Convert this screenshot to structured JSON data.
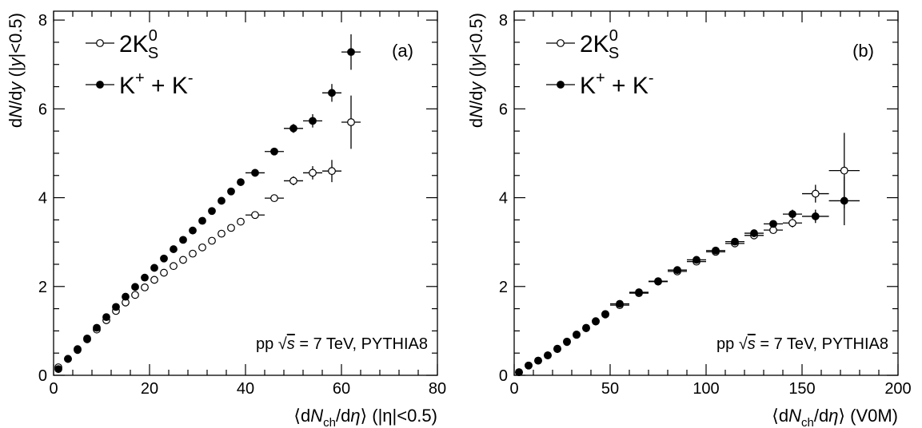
{
  "chart_data": [
    {
      "type": "scatter",
      "panel_label": "(a)",
      "annotation": {
        "pre": "pp  ",
        "sqrt": "√",
        "s": "s",
        "post": " = 7 TeV, PYTHIA8"
      },
      "xlabel": {
        "bra": "⟨",
        "dN": "dN",
        "sub": "ch",
        "slash": "/d",
        "eta": "η",
        "ket": "⟩",
        "suffix": " (|η|<0.5)"
      },
      "ylabel": {
        "dN": "dN",
        "dy": "/dy",
        "open": " (|",
        "y": "y",
        "close": "|<0.5)"
      },
      "xlim": [
        0,
        80
      ],
      "ylim": [
        0,
        8.2
      ],
      "xticks": [
        "0",
        "20",
        "40",
        "60",
        "80"
      ],
      "yticks": [
        "0",
        "2",
        "4",
        "6",
        "8"
      ],
      "grid": false,
      "legend_position": "top-left",
      "series": [
        {
          "name": {
            "main": "2K",
            "sup": "0",
            "sub": "S"
          },
          "marker": "open-circle",
          "points": [
            {
              "x": 1,
              "y": 0.18,
              "xerr": 0,
              "yerr": 0.03
            },
            {
              "x": 3,
              "y": 0.37,
              "xerr": 0,
              "yerr": 0.03
            },
            {
              "x": 5,
              "y": 0.57,
              "xerr": 0,
              "yerr": 0.03
            },
            {
              "x": 7,
              "y": 0.81,
              "xerr": 0,
              "yerr": 0.03
            },
            {
              "x": 9,
              "y": 1.03,
              "xerr": 0,
              "yerr": 0.03
            },
            {
              "x": 11,
              "y": 1.24,
              "xerr": 0,
              "yerr": 0.03
            },
            {
              "x": 13,
              "y": 1.45,
              "xerr": 0,
              "yerr": 0.03
            },
            {
              "x": 15,
              "y": 1.64,
              "xerr": 0,
              "yerr": 0.03
            },
            {
              "x": 17,
              "y": 1.81,
              "xerr": 0,
              "yerr": 0.03
            },
            {
              "x": 19,
              "y": 1.98,
              "xerr": 0,
              "yerr": 0.03
            },
            {
              "x": 21,
              "y": 2.15,
              "xerr": 0,
              "yerr": 0.03
            },
            {
              "x": 23,
              "y": 2.31,
              "xerr": 0,
              "yerr": 0.03
            },
            {
              "x": 25,
              "y": 2.46,
              "xerr": 0,
              "yerr": 0.03
            },
            {
              "x": 27,
              "y": 2.6,
              "xerr": 0,
              "yerr": 0.03
            },
            {
              "x": 29,
              "y": 2.74,
              "xerr": 0,
              "yerr": 0.03
            },
            {
              "x": 31,
              "y": 2.88,
              "xerr": 0,
              "yerr": 0.03
            },
            {
              "x": 33,
              "y": 3.03,
              "xerr": 0,
              "yerr": 0.03
            },
            {
              "x": 35,
              "y": 3.19,
              "xerr": 0,
              "yerr": 0.03
            },
            {
              "x": 37,
              "y": 3.32,
              "xerr": 0,
              "yerr": 0.03
            },
            {
              "x": 39,
              "y": 3.46,
              "xerr": 0,
              "yerr": 0.03
            },
            {
              "x": 42,
              "y": 3.61,
              "xerr": 2,
              "yerr": 0.05
            },
            {
              "x": 46,
              "y": 3.99,
              "xerr": 2,
              "yerr": 0.07
            },
            {
              "x": 50,
              "y": 4.38,
              "xerr": 2,
              "yerr": 0.1
            },
            {
              "x": 54,
              "y": 4.56,
              "xerr": 2,
              "yerr": 0.15
            },
            {
              "x": 58,
              "y": 4.6,
              "xerr": 2,
              "yerr": 0.25
            },
            {
              "x": 62,
              "y": 5.7,
              "xerr": 2,
              "yerr": 0.6
            }
          ]
        },
        {
          "name": {
            "main": "K",
            "sup1": "+",
            "mid": " + K",
            "sup2": "-"
          },
          "marker": "filled-circle",
          "points": [
            {
              "x": 1,
              "y": 0.14,
              "xerr": 0,
              "yerr": 0.03
            },
            {
              "x": 3,
              "y": 0.37,
              "xerr": 0,
              "yerr": 0.03
            },
            {
              "x": 5,
              "y": 0.59,
              "xerr": 0,
              "yerr": 0.03
            },
            {
              "x": 7,
              "y": 0.83,
              "xerr": 0,
              "yerr": 0.03
            },
            {
              "x": 9,
              "y": 1.07,
              "xerr": 0,
              "yerr": 0.03
            },
            {
              "x": 11,
              "y": 1.31,
              "xerr": 0,
              "yerr": 0.03
            },
            {
              "x": 13,
              "y": 1.54,
              "xerr": 0,
              "yerr": 0.03
            },
            {
              "x": 15,
              "y": 1.77,
              "xerr": 0,
              "yerr": 0.03
            },
            {
              "x": 17,
              "y": 1.99,
              "xerr": 0,
              "yerr": 0.03
            },
            {
              "x": 19,
              "y": 2.2,
              "xerr": 0,
              "yerr": 0.03
            },
            {
              "x": 21,
              "y": 2.42,
              "xerr": 0,
              "yerr": 0.03
            },
            {
              "x": 23,
              "y": 2.63,
              "xerr": 0,
              "yerr": 0.03
            },
            {
              "x": 25,
              "y": 2.84,
              "xerr": 0,
              "yerr": 0.03
            },
            {
              "x": 27,
              "y": 3.05,
              "xerr": 0,
              "yerr": 0.03
            },
            {
              "x": 29,
              "y": 3.26,
              "xerr": 0,
              "yerr": 0.03
            },
            {
              "x": 31,
              "y": 3.48,
              "xerr": 0,
              "yerr": 0.03
            },
            {
              "x": 33,
              "y": 3.7,
              "xerr": 0,
              "yerr": 0.03
            },
            {
              "x": 35,
              "y": 3.93,
              "xerr": 0,
              "yerr": 0.03
            },
            {
              "x": 37,
              "y": 4.14,
              "xerr": 0,
              "yerr": 0.03
            },
            {
              "x": 39,
              "y": 4.35,
              "xerr": 0,
              "yerr": 0.03
            },
            {
              "x": 42,
              "y": 4.56,
              "xerr": 2,
              "yerr": 0.05
            },
            {
              "x": 46,
              "y": 5.04,
              "xerr": 2,
              "yerr": 0.07
            },
            {
              "x": 50,
              "y": 5.56,
              "xerr": 2,
              "yerr": 0.1
            },
            {
              "x": 54,
              "y": 5.73,
              "xerr": 2,
              "yerr": 0.15
            },
            {
              "x": 58,
              "y": 6.36,
              "xerr": 2,
              "yerr": 0.2
            },
            {
              "x": 62,
              "y": 7.28,
              "xerr": 2,
              "yerr": 0.4
            }
          ]
        }
      ]
    },
    {
      "type": "scatter",
      "panel_label": "(b)",
      "annotation": {
        "pre": "pp  ",
        "sqrt": "√",
        "s": "s",
        "post": " = 7 TeV, PYTHIA8"
      },
      "xlabel": {
        "bra": "⟨",
        "dN": "dN",
        "sub": "ch",
        "slash": "/d",
        "eta": "η",
        "ket": "⟩",
        "suffix": " (V0M)"
      },
      "ylabel": {
        "dN": "dN",
        "dy": "/dy",
        "open": " (|",
        "y": "y",
        "close": "|<0.5)"
      },
      "xlim": [
        0,
        200
      ],
      "ylim": [
        0,
        8.2
      ],
      "xticks": [
        "0",
        "50",
        "100",
        "150",
        "200"
      ],
      "yticks": [
        "0",
        "2",
        "4",
        "6",
        "8"
      ],
      "grid": false,
      "legend_position": "top-left",
      "series": [
        {
          "name": {
            "main": "2K",
            "sup": "0",
            "sub": "S"
          },
          "marker": "open-circle",
          "points": [
            {
              "x": 2.5,
              "y": 0.07,
              "xerr": 0,
              "yerr": 0.02
            },
            {
              "x": 7.5,
              "y": 0.22,
              "xerr": 0,
              "yerr": 0.02
            },
            {
              "x": 12.5,
              "y": 0.33,
              "xerr": 0,
              "yerr": 0.02
            },
            {
              "x": 17.5,
              "y": 0.45,
              "xerr": 0,
              "yerr": 0.02
            },
            {
              "x": 22.5,
              "y": 0.59,
              "xerr": 0,
              "yerr": 0.02
            },
            {
              "x": 27.5,
              "y": 0.75,
              "xerr": 0,
              "yerr": 0.02
            },
            {
              "x": 32.5,
              "y": 0.91,
              "xerr": 0,
              "yerr": 0.02
            },
            {
              "x": 37.5,
              "y": 1.06,
              "xerr": 0,
              "yerr": 0.02
            },
            {
              "x": 42.5,
              "y": 1.21,
              "xerr": 0,
              "yerr": 0.02
            },
            {
              "x": 47.5,
              "y": 1.37,
              "xerr": 0,
              "yerr": 0.02
            },
            {
              "x": 55,
              "y": 1.58,
              "xerr": 5,
              "yerr": 0.03
            },
            {
              "x": 65,
              "y": 1.85,
              "xerr": 5,
              "yerr": 0.03
            },
            {
              "x": 75,
              "y": 2.11,
              "xerr": 5,
              "yerr": 0.03
            },
            {
              "x": 85,
              "y": 2.34,
              "xerr": 5,
              "yerr": 0.04
            },
            {
              "x": 95,
              "y": 2.56,
              "xerr": 5,
              "yerr": 0.04
            },
            {
              "x": 105,
              "y": 2.78,
              "xerr": 5,
              "yerr": 0.04
            },
            {
              "x": 115,
              "y": 2.97,
              "xerr": 5,
              "yerr": 0.05
            },
            {
              "x": 125,
              "y": 3.15,
              "xerr": 5,
              "yerr": 0.06
            },
            {
              "x": 135,
              "y": 3.27,
              "xerr": 5,
              "yerr": 0.07
            },
            {
              "x": 145,
              "y": 3.43,
              "xerr": 5,
              "yerr": 0.1
            },
            {
              "x": 157,
              "y": 4.09,
              "xerr": 7,
              "yerr": 0.2
            },
            {
              "x": 172,
              "y": 4.61,
              "xerr": 8,
              "yerr": 0.85
            }
          ]
        },
        {
          "name": {
            "main": "K",
            "sup1": "+",
            "mid": " + K",
            "sup2": "-"
          },
          "marker": "filled-circle",
          "points": [
            {
              "x": 2.5,
              "y": 0.07,
              "xerr": 0,
              "yerr": 0.02
            },
            {
              "x": 7.5,
              "y": 0.22,
              "xerr": 0,
              "yerr": 0.02
            },
            {
              "x": 12.5,
              "y": 0.33,
              "xerr": 0,
              "yerr": 0.02
            },
            {
              "x": 17.5,
              "y": 0.45,
              "xerr": 0,
              "yerr": 0.02
            },
            {
              "x": 22.5,
              "y": 0.6,
              "xerr": 0,
              "yerr": 0.02
            },
            {
              "x": 27.5,
              "y": 0.76,
              "xerr": 0,
              "yerr": 0.02
            },
            {
              "x": 32.5,
              "y": 0.92,
              "xerr": 0,
              "yerr": 0.02
            },
            {
              "x": 37.5,
              "y": 1.07,
              "xerr": 0,
              "yerr": 0.02
            },
            {
              "x": 42.5,
              "y": 1.22,
              "xerr": 0,
              "yerr": 0.02
            },
            {
              "x": 47.5,
              "y": 1.38,
              "xerr": 0,
              "yerr": 0.02
            },
            {
              "x": 55,
              "y": 1.61,
              "xerr": 5,
              "yerr": 0.03
            },
            {
              "x": 65,
              "y": 1.87,
              "xerr": 5,
              "yerr": 0.03
            },
            {
              "x": 75,
              "y": 2.12,
              "xerr": 5,
              "yerr": 0.03
            },
            {
              "x": 85,
              "y": 2.37,
              "xerr": 5,
              "yerr": 0.04
            },
            {
              "x": 95,
              "y": 2.6,
              "xerr": 5,
              "yerr": 0.04
            },
            {
              "x": 105,
              "y": 2.81,
              "xerr": 5,
              "yerr": 0.04
            },
            {
              "x": 115,
              "y": 3.01,
              "xerr": 5,
              "yerr": 0.05
            },
            {
              "x": 125,
              "y": 3.2,
              "xerr": 5,
              "yerr": 0.06
            },
            {
              "x": 135,
              "y": 3.41,
              "xerr": 5,
              "yerr": 0.07
            },
            {
              "x": 145,
              "y": 3.63,
              "xerr": 5,
              "yerr": 0.1
            },
            {
              "x": 157,
              "y": 3.58,
              "xerr": 7,
              "yerr": 0.15
            },
            {
              "x": 172,
              "y": 3.93,
              "xerr": 8,
              "yerr": 0.55
            }
          ]
        }
      ]
    }
  ]
}
